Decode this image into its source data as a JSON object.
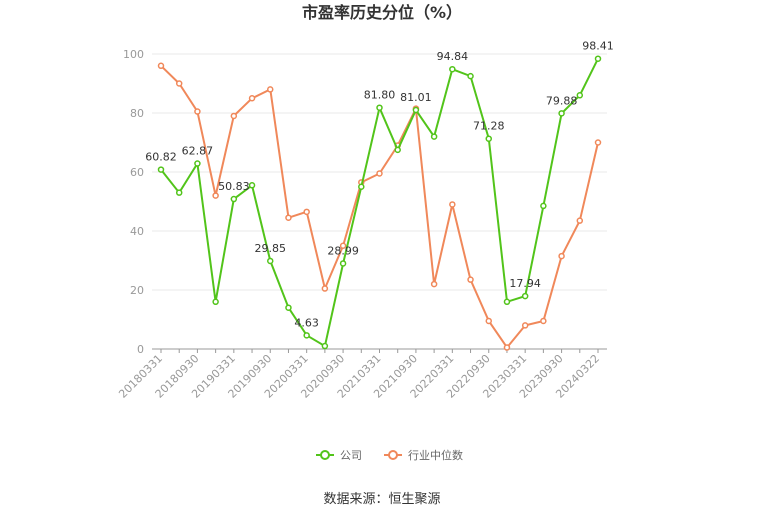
{
  "chart_data": {
    "type": "line",
    "title": "市盈率历史分位（%）",
    "xlabel": "",
    "ylabel": "",
    "ylim": [
      0,
      100
    ],
    "yticks": [
      0,
      20,
      40,
      60,
      80,
      100
    ],
    "grid": true,
    "legend_position": "bottom",
    "x": [
      "20180331",
      "20180630",
      "20180930",
      "20181231",
      "20190331",
      "20190630",
      "20190930",
      "20191231",
      "20200331",
      "20200630",
      "20200930",
      "20201231",
      "20210331",
      "20210630",
      "20210930",
      "20211231",
      "20220331",
      "20220630",
      "20220930",
      "20221231",
      "20230331",
      "20230630",
      "20230930",
      "20231231",
      "20240322"
    ],
    "x_tick_labels": [
      "20180331",
      "20180930",
      "20190331",
      "20190930",
      "20200331",
      "20200930",
      "20210331",
      "20210930",
      "20220331",
      "20220930",
      "20230331",
      "20230930",
      "20240322"
    ],
    "series": [
      {
        "name": "公司",
        "color": "#52c41a",
        "values": [
          60.82,
          53,
          62.87,
          16,
          50.83,
          55.5,
          29.85,
          14,
          4.63,
          1,
          28.99,
          55,
          81.8,
          67.5,
          81.01,
          72,
          94.84,
          92.5,
          71.28,
          16,
          17.94,
          48.5,
          79.88,
          86,
          98.41
        ],
        "data_labels": {
          "0": "60.82",
          "2": "62.87",
          "4": "50.83",
          "6": "29.85",
          "8": "4.63",
          "10": "28.99",
          "12": "81.80",
          "14": "81.01",
          "16": "94.84",
          "18": "71.28",
          "20": "17.94",
          "22": "79.88",
          "24": "98.41"
        }
      },
      {
        "name": "行业中位数",
        "color": "#f0885a",
        "values": [
          96,
          90,
          80.5,
          52,
          79,
          85,
          88,
          44.5,
          46.5,
          20.5,
          35,
          56.5,
          59.5,
          69,
          81.5,
          22,
          49,
          23.5,
          9.5,
          0.5,
          8,
          9.5,
          31.5,
          43.5,
          70
        ]
      }
    ]
  },
  "source_text": "数据来源：恒生聚源",
  "icons": {
    "legend_marker": "circle-line-icon"
  }
}
